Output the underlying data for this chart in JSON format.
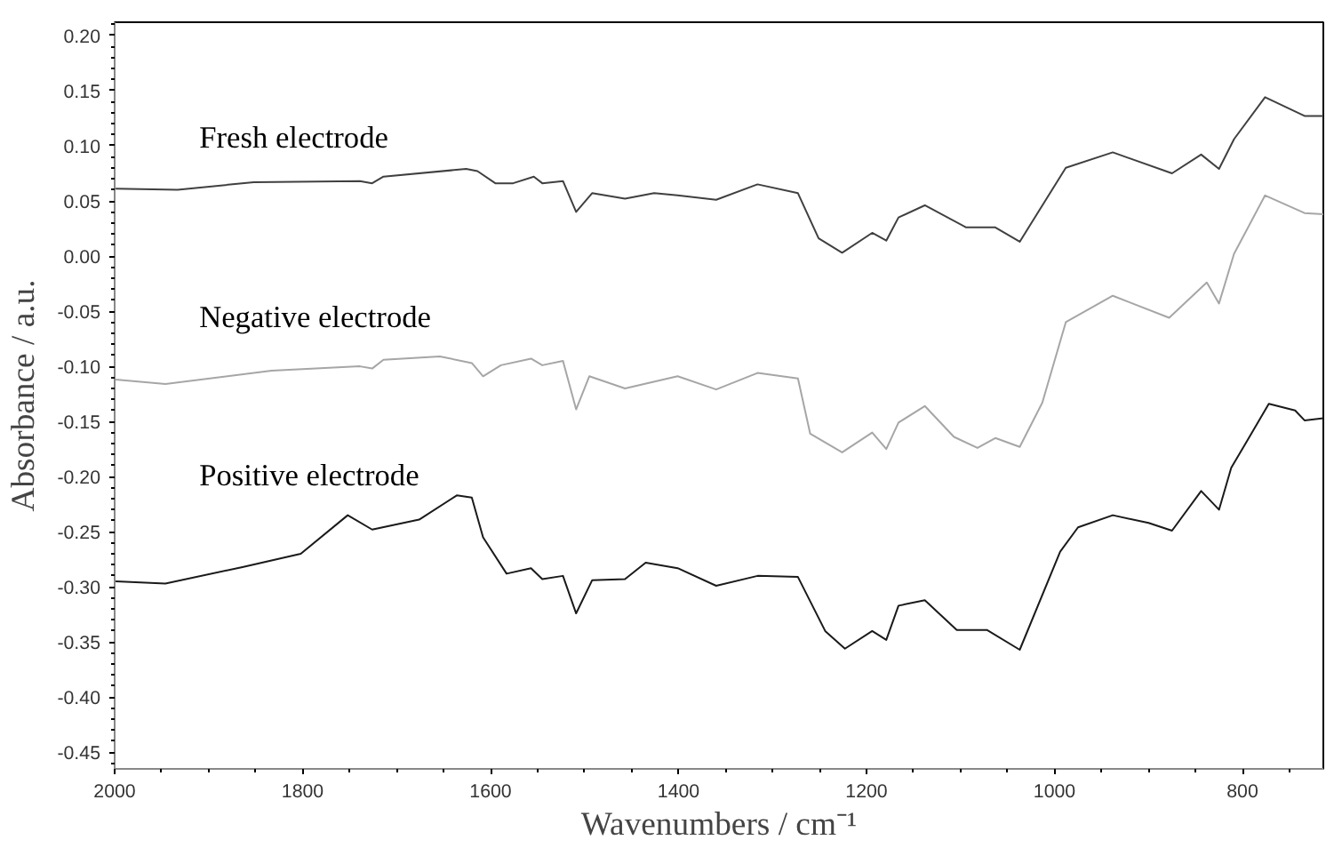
{
  "chart_data": {
    "type": "line",
    "xlabel": "Wavenumbers / cm⁻¹",
    "ylabel": "Absorbance / a.u.",
    "xlim": [
      2000,
      714
    ],
    "ylim": [
      -0.465,
      0.212
    ],
    "xticks": [
      2000,
      1800,
      1600,
      1400,
      1200,
      1000,
      800
    ],
    "yticks": [
      {
        "value": 0.2,
        "label": "0.20"
      },
      {
        "value": 0.15,
        "label": "0.15"
      },
      {
        "value": 0.1,
        "label": "0.10"
      },
      {
        "value": 0.05,
        "label": "0.05"
      },
      {
        "value": 0,
        "label": "0.00"
      },
      {
        "value": -0.05,
        "label": "-0.05"
      },
      {
        "value": -0.1,
        "label": "-0.10"
      },
      {
        "value": -0.15,
        "label": "-0.15"
      },
      {
        "value": -0.2,
        "label": "-0.20"
      },
      {
        "value": -0.25,
        "label": "-0.25"
      },
      {
        "value": -0.3,
        "label": "-0.30"
      },
      {
        "value": -0.35,
        "label": "-0.35"
      },
      {
        "value": -0.4,
        "label": "-0.40"
      },
      {
        "value": -0.45,
        "label": "-0.45"
      }
    ],
    "grid": false,
    "legend": false,
    "marker": "none",
    "line_style": "solid",
    "series": [
      {
        "name": "Fresh electrode",
        "color": "#404040",
        "x": [
          1999,
          1933,
          1852,
          1739,
          1726,
          1714,
          1626,
          1614,
          1595,
          1576,
          1554,
          1545,
          1523,
          1509,
          1492,
          1457,
          1426,
          1401,
          1360,
          1316,
          1273,
          1251,
          1226,
          1194,
          1179,
          1166,
          1138,
          1094,
          1063,
          1037,
          988,
          938,
          875,
          844,
          825,
          809,
          776,
          734,
          714
        ],
        "values": [
          0.061,
          0.06,
          0.067,
          0.068,
          0.066,
          0.072,
          0.079,
          0.077,
          0.066,
          0.066,
          0.072,
          0.066,
          0.068,
          0.04,
          0.057,
          0.052,
          0.057,
          0.055,
          0.051,
          0.065,
          0.057,
          0.016,
          0.003,
          0.021,
          0.014,
          0.035,
          0.046,
          0.026,
          0.026,
          0.013,
          0.08,
          0.094,
          0.075,
          0.092,
          0.079,
          0.106,
          0.144,
          0.127,
          0.127
        ]
      },
      {
        "name": "Negative electrode",
        "color": "#a6a6a6",
        "x": [
          1999,
          1946,
          1833,
          1739,
          1726,
          1714,
          1654,
          1620,
          1608,
          1589,
          1557,
          1545,
          1523,
          1509,
          1495,
          1457,
          1401,
          1360,
          1316,
          1273,
          1260,
          1226,
          1194,
          1179,
          1166,
          1138,
          1107,
          1082,
          1063,
          1037,
          1013,
          988,
          938,
          878,
          838,
          825,
          809,
          776,
          734,
          714
        ],
        "values": [
          -0.112,
          -0.116,
          -0.104,
          -0.1,
          -0.102,
          -0.094,
          -0.091,
          -0.097,
          -0.109,
          -0.099,
          -0.093,
          -0.099,
          -0.095,
          -0.139,
          -0.109,
          -0.12,
          -0.109,
          -0.121,
          -0.106,
          -0.111,
          -0.161,
          -0.178,
          -0.16,
          -0.175,
          -0.151,
          -0.136,
          -0.164,
          -0.174,
          -0.165,
          -0.173,
          -0.133,
          -0.06,
          -0.036,
          -0.056,
          -0.024,
          -0.043,
          0.002,
          0.055,
          0.039,
          0.038
        ]
      },
      {
        "name": "Positive electrode",
        "color": "#1a1a1a",
        "x": [
          1999,
          1946,
          1864,
          1802,
          1752,
          1726,
          1676,
          1636,
          1620,
          1608,
          1583,
          1557,
          1545,
          1523,
          1509,
          1492,
          1457,
          1435,
          1401,
          1360,
          1316,
          1273,
          1244,
          1223,
          1194,
          1179,
          1166,
          1138,
          1104,
          1072,
          1037,
          994,
          975,
          938,
          900,
          875,
          844,
          825,
          812,
          794,
          772,
          744,
          734,
          714
        ],
        "values": [
          -0.295,
          -0.297,
          -0.282,
          -0.27,
          -0.235,
          -0.248,
          -0.239,
          -0.217,
          -0.219,
          -0.255,
          -0.288,
          -0.283,
          -0.293,
          -0.29,
          -0.324,
          -0.294,
          -0.293,
          -0.278,
          -0.283,
          -0.299,
          -0.29,
          -0.291,
          -0.34,
          -0.356,
          -0.34,
          -0.348,
          -0.317,
          -0.312,
          -0.339,
          -0.339,
          -0.357,
          -0.268,
          -0.246,
          -0.235,
          -0.242,
          -0.249,
          -0.213,
          -0.23,
          -0.192,
          -0.166,
          -0.134,
          -0.14,
          -0.149,
          -0.147
        ]
      }
    ]
  }
}
